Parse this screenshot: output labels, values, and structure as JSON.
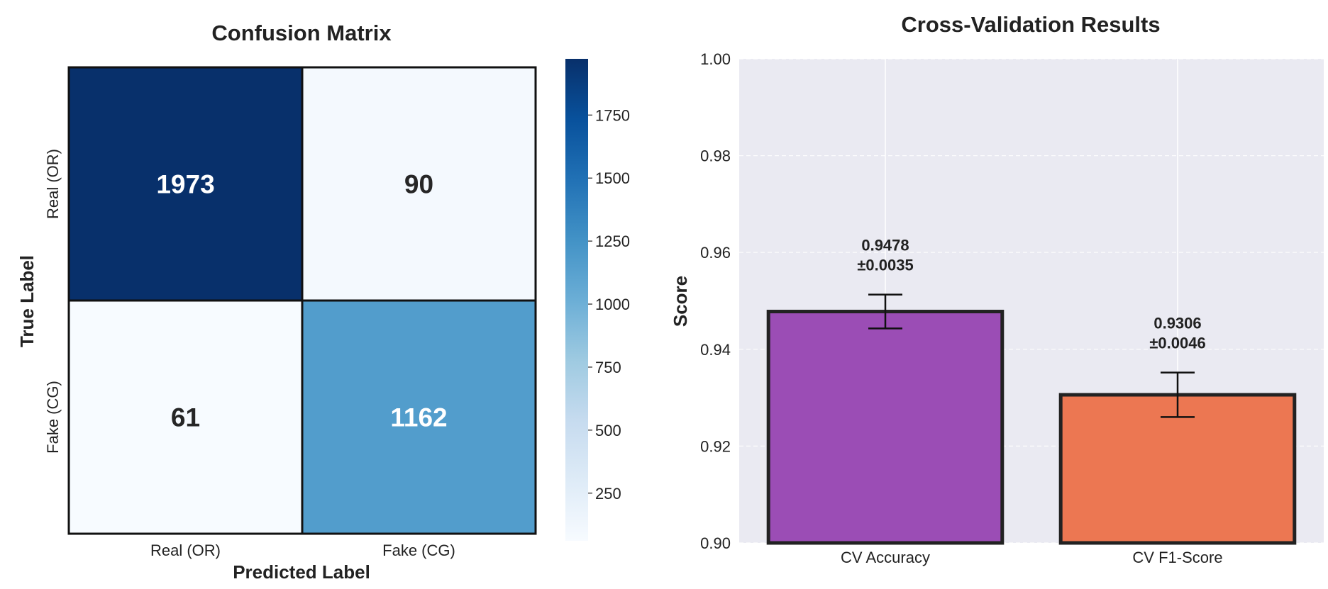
{
  "chart_data": [
    {
      "type": "heatmap",
      "title": "Confusion Matrix",
      "xlabel": "Predicted Label",
      "ylabel": "True Label",
      "x_categories": [
        "Real (OR)",
        "Fake (CG)"
      ],
      "y_categories": [
        "Real (OR)",
        "Fake (CG)"
      ],
      "values": [
        [
          1973,
          90
        ],
        [
          61,
          1162
        ]
      ],
      "colormap": "Blues",
      "colorbar": {
        "ticks": [
          250,
          500,
          750,
          1000,
          1250,
          1500,
          1750
        ],
        "range": [
          61,
          1973
        ]
      }
    },
    {
      "type": "bar",
      "title": "Cross-Validation Results",
      "xlabel": "",
      "ylabel": "Score",
      "categories": [
        "CV Accuracy",
        "CV F1-Score"
      ],
      "values": [
        0.9478,
        0.9306
      ],
      "errors": [
        0.0035,
        0.0046
      ],
      "value_labels": [
        "0.9478",
        "0.9306"
      ],
      "error_labels": [
        "±0.0035",
        "±0.0046"
      ],
      "colors": [
        "#9b4db5",
        "#ec7752"
      ],
      "ylim": [
        0.9,
        1.0
      ],
      "yticks": [
        0.9,
        0.92,
        0.94,
        0.96,
        0.98,
        1.0
      ],
      "grid": true
    }
  ]
}
